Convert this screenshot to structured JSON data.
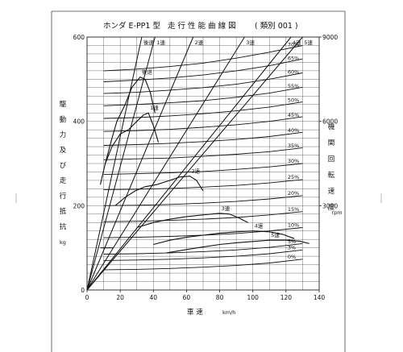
{
  "chart_data": {
    "type": "line",
    "title": {
      "model": "ホンダ E-PP1 型",
      "main": "走 行 性 能 曲 線 図",
      "tag": "( 類別 001 )"
    },
    "xlabel": {
      "text": "車    速",
      "unit": "km/h"
    },
    "ylabel_left": {
      "chars": [
        "駆",
        "動",
        "力",
        "及",
        "び",
        "走",
        "行",
        "抵",
        "抗"
      ],
      "unit": "kg"
    },
    "ylabel_right": {
      "chars": [
        "機",
        "関",
        "回",
        "転",
        "速",
        "度"
      ],
      "unit": "rpm"
    },
    "xlim": [
      0,
      140
    ],
    "ylim": [
      0,
      600
    ],
    "y2lim": [
      0,
      9000
    ],
    "x_ticks": [
      "0",
      "20",
      "40",
      "60",
      "80",
      "100",
      "120",
      "140"
    ],
    "y_ticks": [
      "0",
      "200",
      "400",
      "600"
    ],
    "y2_ticks": [
      "3000",
      "6000",
      "9000"
    ],
    "grid": true,
    "engine_speed_lines": [
      {
        "name": "後退",
        "vmax": 33
      },
      {
        "name": "1速",
        "vmax": 41
      },
      {
        "name": "2速",
        "vmax": 64
      },
      {
        "name": "3速",
        "vmax": 95
      },
      {
        "name": "4速",
        "vmax": 123
      },
      {
        "name": "5速",
        "vmax": 130
      }
    ],
    "driving_force": [
      {
        "name": "後退",
        "points": [
          [
            8,
            250
          ],
          [
            11,
            300
          ],
          [
            15,
            360
          ],
          [
            18,
            400
          ],
          [
            23,
            440
          ],
          [
            27,
            480
          ],
          [
            32,
            505
          ],
          [
            35,
            500
          ],
          [
            38,
            470
          ],
          [
            41,
            420
          ]
        ]
      },
      {
        "name": "1速",
        "points": [
          [
            11,
            300
          ],
          [
            15,
            340
          ],
          [
            20,
            370
          ],
          [
            25,
            380
          ],
          [
            30,
            400
          ],
          [
            34,
            415
          ],
          [
            37,
            420
          ],
          [
            40,
            390
          ],
          [
            43,
            350
          ]
        ]
      },
      {
        "name": "2速",
        "points": [
          [
            17,
            200
          ],
          [
            23,
            220
          ],
          [
            29,
            235
          ],
          [
            35,
            245
          ],
          [
            42,
            250
          ],
          [
            50,
            260
          ],
          [
            56,
            268
          ],
          [
            62,
            270
          ],
          [
            66,
            260
          ],
          [
            70,
            235
          ]
        ]
      },
      {
        "name": "3速",
        "points": [
          [
            30,
            148
          ],
          [
            40,
            160
          ],
          [
            50,
            168
          ],
          [
            60,
            174
          ],
          [
            70,
            178
          ],
          [
            80,
            182
          ],
          [
            86,
            180
          ],
          [
            92,
            170
          ],
          [
            97,
            160
          ]
        ]
      },
      {
        "name": "4速",
        "points": [
          [
            40,
            108
          ],
          [
            50,
            118
          ],
          [
            60,
            125
          ],
          [
            70,
            130
          ],
          [
            80,
            135
          ],
          [
            90,
            138
          ],
          [
            100,
            140
          ],
          [
            110,
            138
          ],
          [
            118,
            132
          ],
          [
            125,
            122
          ]
        ]
      },
      {
        "name": "5速",
        "points": [
          [
            48,
            88
          ],
          [
            60,
            96
          ],
          [
            70,
            102
          ],
          [
            80,
            108
          ],
          [
            90,
            112
          ],
          [
            100,
            115
          ],
          [
            110,
            118
          ],
          [
            120,
            118
          ],
          [
            128,
            116
          ],
          [
            134,
            110
          ]
        ]
      }
    ],
    "resistance": [
      {
        "name": "70%",
        "x": [
          10,
          30,
          50,
          70,
          90,
          110,
          130
        ],
        "y": [
          520,
          524,
          530,
          538,
          550,
          564,
          580
        ]
      },
      {
        "name": "65%",
        "x": [
          10,
          30,
          50,
          70,
          90,
          110,
          130
        ],
        "y": [
          494,
          498,
          503,
          510,
          520,
          532,
          548
        ]
      },
      {
        "name": "60%",
        "x": [
          10,
          30,
          50,
          70,
          90,
          110,
          130
        ],
        "y": [
          466,
          469,
          474,
          480,
          488,
          500,
          515
        ]
      },
      {
        "name": "55%",
        "x": [
          10,
          30,
          50,
          70,
          90,
          110,
          130
        ],
        "y": [
          437,
          440,
          444,
          449,
          457,
          467,
          481
        ]
      },
      {
        "name": "50%",
        "x": [
          10,
          30,
          50,
          70,
          90,
          110,
          130
        ],
        "y": [
          407,
          409,
          413,
          418,
          425,
          434,
          446
        ]
      },
      {
        "name": "45%",
        "x": [
          10,
          30,
          50,
          70,
          90,
          110,
          130
        ],
        "y": [
          376,
          378,
          381,
          386,
          392,
          400,
          411
        ]
      },
      {
        "name": "40%",
        "x": [
          10,
          30,
          50,
          70,
          90,
          110,
          130
        ],
        "y": [
          343,
          345,
          348,
          352,
          357,
          364,
          374
        ]
      },
      {
        "name": "35%",
        "x": [
          10,
          30,
          50,
          70,
          90,
          110,
          130
        ],
        "y": [
          309,
          311,
          313,
          317,
          322,
          328,
          337
        ]
      },
      {
        "name": "30%",
        "x": [
          10,
          30,
          50,
          70,
          90,
          110,
          130
        ],
        "y": [
          274,
          276,
          278,
          281,
          286,
          292,
          300
        ]
      },
      {
        "name": "25%",
        "x": [
          10,
          30,
          50,
          70,
          90,
          110,
          130
        ],
        "y": [
          238,
          239,
          241,
          244,
          248,
          254,
          262
        ]
      },
      {
        "name": "20%",
        "x": [
          10,
          30,
          50,
          70,
          90,
          110,
          130
        ],
        "y": [
          200,
          201,
          203,
          206,
          210,
          216,
          224
        ]
      },
      {
        "name": "15%",
        "x": [
          10,
          30,
          50,
          70,
          90,
          110,
          130
        ],
        "y": [
          162,
          163,
          165,
          168,
          172,
          178,
          186
        ]
      },
      {
        "name": "10%",
        "x": [
          10,
          30,
          50,
          70,
          90,
          110,
          130
        ],
        "y": [
          124,
          125,
          127,
          130,
          134,
          140,
          148
        ]
      },
      {
        "name": "5%",
        "x": [
          10,
          30,
          50,
          70,
          90,
          110,
          130
        ],
        "y": [
          85,
          86,
          88,
          91,
          95,
          101,
          110
        ]
      },
      {
        "name": "3%",
        "x": [
          10,
          30,
          50,
          70,
          90,
          110,
          130
        ],
        "y": [
          70,
          71,
          73,
          76,
          80,
          86,
          95
        ]
      },
      {
        "name": "0%",
        "x": [
          10,
          30,
          50,
          70,
          90,
          110,
          130
        ],
        "y": [
          48,
          49,
          51,
          54,
          58,
          64,
          73
        ]
      }
    ],
    "idle_line": {
      "x": [
        8,
        16
      ],
      "y": [
        100,
        100
      ]
    }
  }
}
